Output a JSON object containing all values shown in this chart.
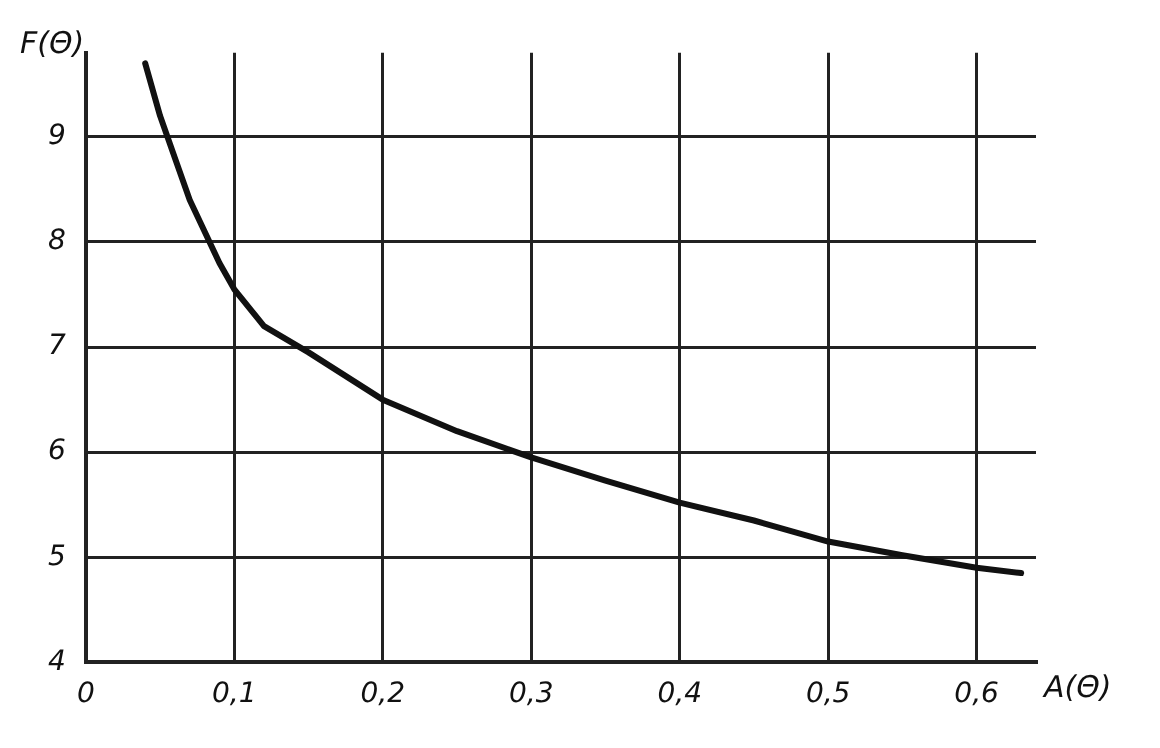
{
  "chart_data": {
    "type": "line",
    "xlabel": "A(Θ)",
    "ylabel": "F(Θ)",
    "series": [
      {
        "color": "#111111",
        "x": [
          0.04,
          0.05,
          0.06,
          0.07,
          0.08,
          0.09,
          0.1,
          0.12,
          0.15,
          0.2,
          0.25,
          0.3,
          0.35,
          0.4,
          0.45,
          0.5,
          0.55,
          0.6,
          0.63
        ],
        "values": [
          9.7,
          9.2,
          8.8,
          8.4,
          8.1,
          7.8,
          7.55,
          7.2,
          6.95,
          6.5,
          6.2,
          5.95,
          5.73,
          5.52,
          5.35,
          5.15,
          5.02,
          4.9,
          4.85
        ]
      }
    ],
    "xlim": [
      0,
      0.64
    ],
    "ylim": [
      4,
      9.8
    ],
    "xticks": [
      0,
      {
        "value": 0.1,
        "label": "0,1"
      },
      {
        "value": 0.2,
        "label": "0,2"
      },
      {
        "value": 0.3,
        "label": "0,3"
      },
      {
        "value": 0.4,
        "label": "0,4"
      },
      {
        "value": 0.5,
        "label": "0,5"
      },
      {
        "value": 0.6,
        "label": "0,6"
      }
    ],
    "yticks": [
      4,
      5,
      6,
      7,
      8,
      9
    ],
    "grid": true,
    "legend": false,
    "marker": "none",
    "line_style": "solid"
  }
}
